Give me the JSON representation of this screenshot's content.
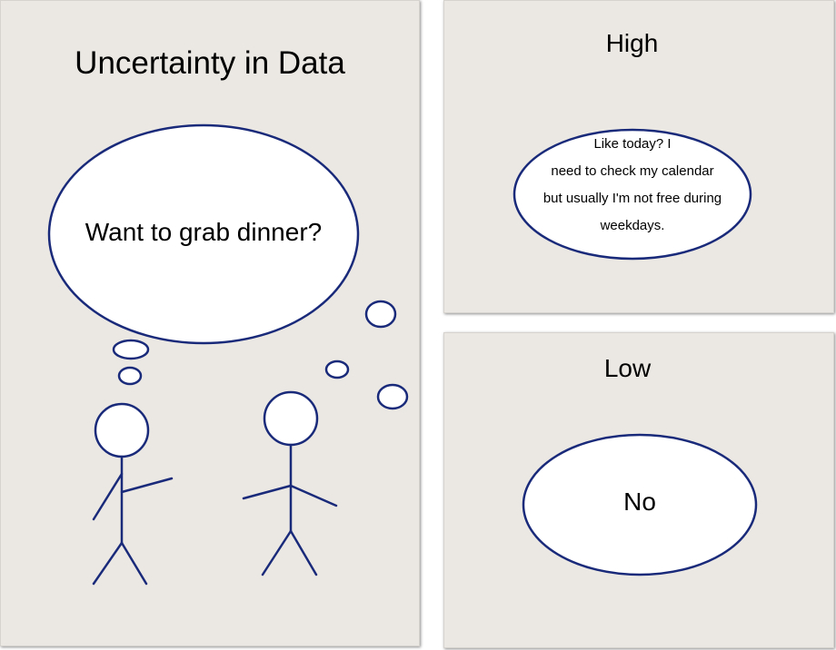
{
  "main": {
    "title": "Uncertainty in Data",
    "speech": "Want to grab dinner?"
  },
  "high": {
    "label": "High",
    "reply_lines": [
      "Like today? I",
      "need to check my calendar",
      "but usually I'm not free during",
      "weekdays."
    ]
  },
  "low": {
    "label": "Low",
    "reply": "No"
  },
  "colors": {
    "panel": "#ebe8e3",
    "stroke": "#1a2a7a",
    "bubble_fill": "#ffffff",
    "text": "#000000"
  }
}
